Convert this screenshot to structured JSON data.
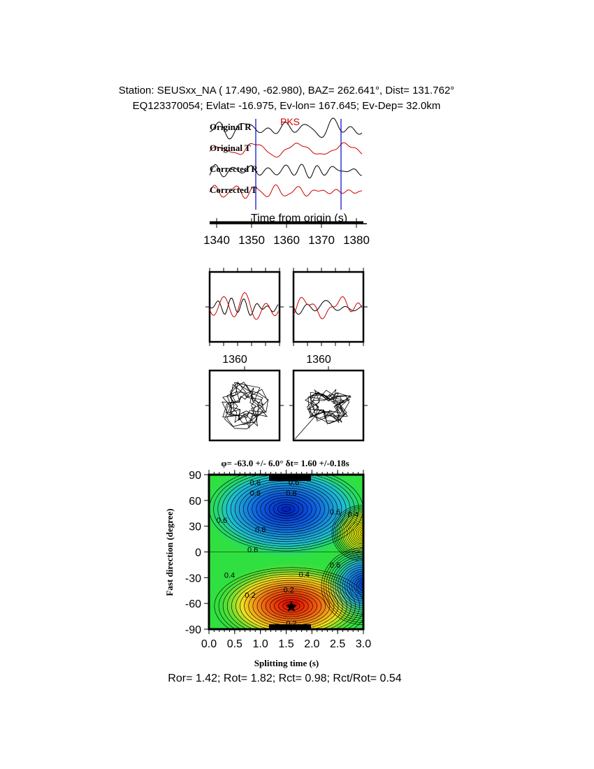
{
  "header": {
    "line1": "Station: SEUSxx_NA (  17.490,  -62.980), BAZ=  262.641°, Dist=  131.762°",
    "line2": "EQ123370054; Evlat= -16.975, Ev-lon= 167.645; Ev-Dep= 32.0km"
  },
  "chart_data": [
    {
      "type": "line",
      "panel": "waveforms",
      "phase_label": "PKS",
      "trace_labels": [
        "Original R",
        "Original T",
        "Corrected R",
        "Corrected T"
      ],
      "xlabel": "Time from origin (s)",
      "xlim": [
        1338,
        1382
      ],
      "xticks": [
        "1340",
        "1350",
        "1360",
        "1370",
        "1380"
      ],
      "window_markers_s": [
        1351.2,
        1375.6
      ],
      "colors": {
        "radial": "#000000",
        "transverse": "#cc0000",
        "marker": "#0000cc"
      }
    },
    {
      "type": "line",
      "panel": "windowed-waveforms",
      "tick_labels": [
        "1360",
        "1360"
      ]
    },
    {
      "type": "scatter",
      "panel": "particle-motion"
    },
    {
      "type": "heatmap",
      "panel": "energy-grid",
      "title": "φ= -63.0 +/- 6.0° δt= 1.60 +/-0.18s",
      "xlabel": "Splitting time (s)",
      "ylabel": "Fast direction (degree)",
      "xlim": [
        0,
        3
      ],
      "ylim": [
        -90,
        90
      ],
      "xticks": [
        "0.0",
        "0.5",
        "1.0",
        "1.5",
        "2.0",
        "2.5",
        "3.0"
      ],
      "yticks": [
        "90",
        "60",
        "30",
        "0",
        "-30",
        "-60",
        "-90"
      ],
      "best_fit": {
        "dt": 1.6,
        "phi": -63.0
      },
      "contour_labels": [
        {
          "text": "0.6",
          "x": 0.9,
          "y": 81
        },
        {
          "text": "0.6",
          "x": 1.65,
          "y": 81
        },
        {
          "text": "0.8",
          "x": 0.9,
          "y": 69
        },
        {
          "text": "0.8",
          "x": 1.6,
          "y": 69
        },
        {
          "text": "0.6",
          "x": 0.25,
          "y": 37
        },
        {
          "text": "0.8",
          "x": 1.0,
          "y": 26
        },
        {
          "text": "0.6",
          "x": 0.85,
          "y": 3
        },
        {
          "text": "0.6",
          "x": 2.45,
          "y": 47
        },
        {
          "text": "0.4",
          "x": 2.8,
          "y": 44
        },
        {
          "text": "0.4",
          "x": 0.4,
          "y": -27
        },
        {
          "text": "0.4",
          "x": 1.85,
          "y": -26
        },
        {
          "text": "0.2",
          "x": 0.8,
          "y": -50
        },
        {
          "text": "0.2",
          "x": 1.55,
          "y": -44
        },
        {
          "text": "0.6",
          "x": 2.45,
          "y": -15
        },
        {
          "text": "0.2",
          "x": 1.6,
          "y": -83
        }
      ]
    }
  ],
  "footer": "Ror= 1.42; Rot= 1.82; Rct= 0.98; Rct/Rot= 0.54"
}
